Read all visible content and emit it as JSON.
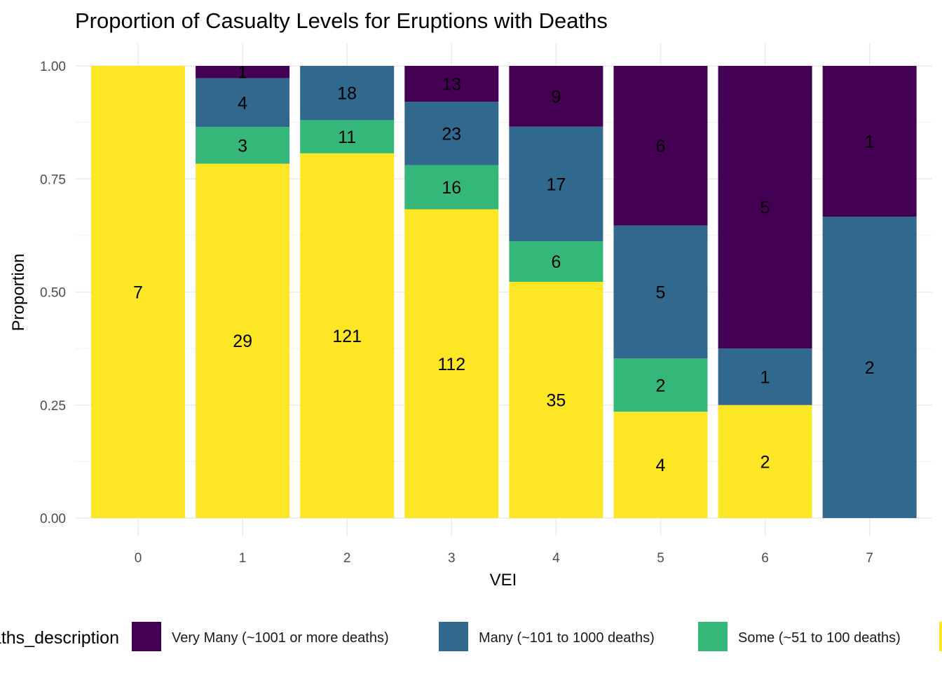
{
  "chart_data": {
    "type": "bar",
    "stacked": true,
    "normalized": true,
    "title": "Proportion of Casualty Levels for Eruptions with Deaths",
    "xlabel": "VEI",
    "ylabel": "Proportion",
    "ylim": [
      0,
      1
    ],
    "yticks": [
      "0.00",
      "0.25",
      "0.50",
      "0.75",
      "1.00"
    ],
    "categories": [
      "0",
      "1",
      "2",
      "3",
      "4",
      "5",
      "6",
      "7"
    ],
    "grid": true,
    "legend_position": "bottom",
    "legend_title": "deaths_description",
    "series": [
      {
        "name": "Very Many (~1001 or more deaths)",
        "color": "#440154",
        "values": [
          0,
          1,
          0,
          13,
          9,
          6,
          5,
          1
        ]
      },
      {
        "name": "Many (~101 to 1000 deaths)",
        "color": "#31688E",
        "values": [
          0,
          4,
          18,
          23,
          17,
          5,
          1,
          2
        ]
      },
      {
        "name": "Some (~51 to 100 deaths)",
        "color": "#35B779",
        "values": [
          0,
          3,
          11,
          16,
          6,
          2,
          0,
          0
        ]
      },
      {
        "name": "",
        "color": "#FDE725",
        "values": [
          7,
          29,
          121,
          112,
          35,
          4,
          2,
          0
        ]
      }
    ]
  }
}
